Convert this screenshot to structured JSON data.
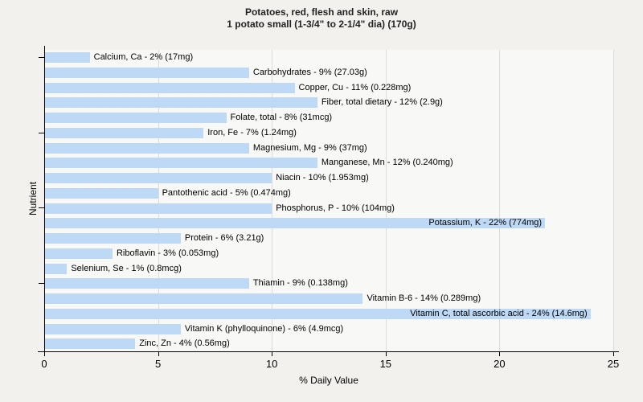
{
  "title": {
    "line1": "Potatoes, red, flesh and skin, raw",
    "line2": "1 potato small (1-3/4\" to 2-1/4\" dia) (170g)"
  },
  "chart_data": {
    "type": "bar",
    "orientation": "horizontal",
    "title": "Potatoes, red, flesh and skin, raw",
    "subtitle": "1 potato small (1-3/4\" to 2-1/4\" dia) (170g)",
    "xlabel": "% Daily Value",
    "ylabel": "Nutrient",
    "xlim": [
      0,
      25
    ],
    "xticks": [
      0,
      5,
      10,
      15,
      20,
      25
    ],
    "grid": "vertical-gridlines-on",
    "legend": "none",
    "bar_color": "#bed9f6",
    "categories": [
      "Calcium, Ca",
      "Carbohydrates",
      "Copper, Cu",
      "Fiber, total dietary",
      "Folate, total",
      "Iron, Fe",
      "Magnesium, Mg",
      "Manganese, Mn",
      "Niacin",
      "Pantothenic acid",
      "Phosphorus, P",
      "Potassium, K",
      "Protein",
      "Riboflavin",
      "Selenium, Se",
      "Thiamin",
      "Vitamin B-6",
      "Vitamin C, total ascorbic acid",
      "Vitamin K (phylloquinone)",
      "Zinc, Zn"
    ],
    "values": [
      2,
      9,
      11,
      12,
      8,
      7,
      9,
      12,
      10,
      5,
      10,
      22,
      6,
      3,
      1,
      9,
      14,
      24,
      6,
      4
    ],
    "amounts": [
      "17mg",
      "27.03g",
      "0.228mg",
      "2.9g",
      "31mcg",
      "1.24mg",
      "37mg",
      "0.240mg",
      "1.953mg",
      "0.474mg",
      "104mg",
      "774mg",
      "3.21g",
      "0.053mg",
      "0.8mcg",
      "0.138mg",
      "0.289mg",
      "14.6mg",
      "4.9mcg",
      "0.56mg"
    ],
    "labels": [
      "Calcium, Ca - 2% (17mg)",
      "Carbohydrates - 9% (27.03g)",
      "Copper, Cu - 11% (0.228mg)",
      "Fiber, total dietary - 12% (2.9g)",
      "Folate, total - 8% (31mcg)",
      "Iron, Fe - 7% (1.24mg)",
      "Magnesium, Mg - 9% (37mg)",
      "Manganese, Mn - 12% (0.240mg)",
      "Niacin - 10% (1.953mg)",
      "Pantothenic acid - 5% (0.474mg)",
      "Phosphorus, P - 10% (104mg)",
      "Potassium, K - 22% (774mg)",
      "Protein - 6% (3.21g)",
      "Riboflavin - 3% (0.053mg)",
      "Selenium, Se - 1% (0.8mcg)",
      "Thiamin - 9% (0.138mg)",
      "Vitamin B-6 - 14% (0.289mg)",
      "Vitamin C, total ascorbic acid - 24% (14.6mg)",
      "Vitamin K (phylloquinone) - 6% (4.9mcg)",
      "Zinc, Zn - 4% (0.56mg)"
    ],
    "y_tick_rows": [
      0,
      5,
      10,
      15
    ]
  }
}
